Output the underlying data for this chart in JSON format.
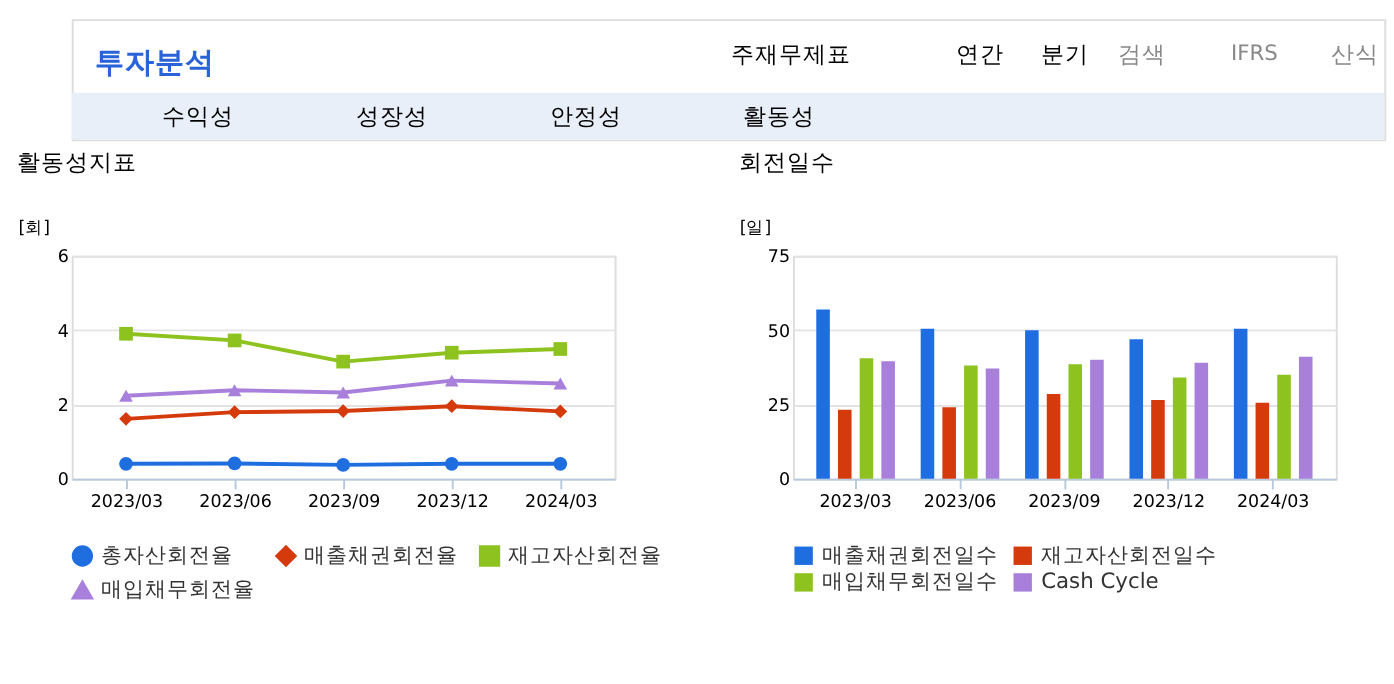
{
  "chart_data": [
    {
      "type": "other",
      "annotations": [
        "투자분석",
        "주재무제표",
        "연간",
        "분기",
        "검색",
        "IFRS",
        "산식",
        "수익성",
        "성장성",
        "안정성",
        "활동성"
      ]
    },
    {
      "type": "line",
      "title": "활동성지표",
      "ylabel": "[회]",
      "categories": [
        "2023/03",
        "2023/06",
        "2023/09",
        "2023/12",
        "2024/03"
      ],
      "ylim": [
        0,
        6
      ],
      "yticks": [
        0,
        2,
        4,
        6
      ],
      "grid": "y",
      "legend": "bottom",
      "line_style": "solid",
      "series": [
        {
          "name": "총자산회전율",
          "color": "#1f6ee0",
          "marker": "circle",
          "values": [
            0.4,
            0.41,
            0.37,
            0.4,
            0.4
          ]
        },
        {
          "name": "매출채권회전율",
          "color": "#d43a0b",
          "marker": "diamond",
          "values": [
            1.61,
            1.79,
            1.82,
            1.95,
            1.81
          ]
        },
        {
          "name": "재고자산회전율",
          "color": "#8dc21f",
          "marker": "square",
          "values": [
            3.9,
            3.72,
            3.15,
            3.39,
            3.49
          ]
        },
        {
          "name": "매입채무회전율",
          "color": "#a97fdc",
          "marker": "triangle",
          "values": [
            2.23,
            2.38,
            2.32,
            2.64,
            2.56
          ]
        }
      ]
    },
    {
      "type": "bar",
      "title": "회전일수",
      "ylabel": "[일]",
      "categories": [
        "2023/03",
        "2023/06",
        "2023/09",
        "2023/12",
        "2024/03"
      ],
      "ylim": [
        0,
        75
      ],
      "yticks": [
        0,
        25,
        50,
        75
      ],
      "grid": "y",
      "legend": "bottom",
      "series": [
        {
          "name": "매출채권회전일수",
          "color": "#1f6ee0",
          "values": [
            56.9,
            50.4,
            49.9,
            46.9,
            50.4
          ]
        },
        {
          "name": "재고자산회전일수",
          "color": "#d43a0b",
          "values": [
            23.2,
            24.0,
            28.5,
            26.5,
            25.5
          ]
        },
        {
          "name": "매입채무회전일수",
          "color": "#8dc21f",
          "values": [
            40.5,
            38.1,
            38.5,
            34.0,
            35.0
          ]
        },
        {
          "name": "Cash Cycle",
          "color": "#a97fdc",
          "values": [
            39.5,
            37.1,
            40.0,
            39.0,
            41.0
          ]
        }
      ]
    }
  ]
}
